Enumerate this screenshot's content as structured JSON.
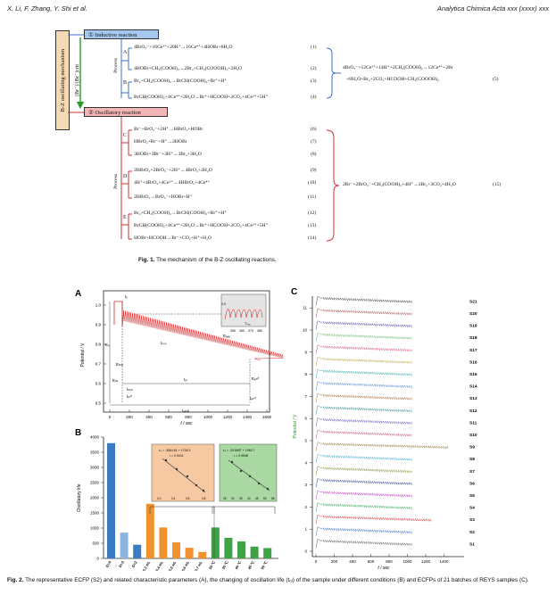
{
  "header": {
    "left": "X. Li, F. Zhang, Y. Shi et al.",
    "right": "Analytica Chimica Acta xxx (xxxx) xxx"
  },
  "figure1": {
    "vertical_title": "B-Z oscillating mechanism",
    "switch_label": "[Br⁻]/[Br⁻]crit",
    "stage1": "① Inductive reaction",
    "stage2": "② Oscillatory reaction",
    "process_word": "Process",
    "groups": [
      "A",
      "B",
      "C",
      "D",
      "E"
    ],
    "reactions": [
      {
        "eq": "4BrO₃⁻+16Ce³⁺+20H⁺→16Ce⁴⁺+4HOBr+8H₂O",
        "num": "(1)"
      },
      {
        "eq": "4HOBr+CH₂(COOH)₂→2Br₂+CH₂(COOOH)₂+2H₂O",
        "num": "(2)"
      },
      {
        "eq": "Br₂+CH₂(COOH)₂→BrCH(COOH)₂+Br⁺+H⁺",
        "num": "(3)"
      },
      {
        "eq": "BrCH(COOH)₂+4Ce⁴⁺+2H₂O→Br⁺+HCOOH+2CO₂+4Ce³⁺+5H⁺",
        "num": "(4)"
      },
      {
        "eq": "Br⁻+BrO₃⁻+2H⁺→HBrO₂+HOBr",
        "num": "(6)"
      },
      {
        "eq": "HBrO₂+Br⁻+H⁺→2HOBr",
        "num": "(7)"
      },
      {
        "eq": "3HOBr+3Br⁻+3H⁺→3Br₂+3H₂O",
        "num": "(8)"
      },
      {
        "eq": "2HBrO₂+2BrO₃⁻+2H⁺→4BrO₂+2H₂O",
        "num": "(9)"
      },
      {
        "eq": "4H⁺+4BrO₂+4Ce³⁺→4HBrO₂+4Ce⁴⁺",
        "num": "(10)"
      },
      {
        "eq": "2HBrO₂→BrO₃⁻+HOBr+H⁺",
        "num": "(11)"
      },
      {
        "eq": "Br₂+CH₂(COOH)₂→BrCH(COOH)₂+Br⁺+H⁺",
        "num": "(12)"
      },
      {
        "eq": "BrCH(COOH)₂+4Ce⁴⁺+2H₂O→Br⁺+HCOOH+2CO₂+4Ce³⁺+5H⁺",
        "num": "(13)"
      },
      {
        "eq": "HOBr+HCOOH→Br⁻+CO₂+H⁺+H₂O",
        "num": "(14)"
      }
    ],
    "overall1": {
      "line1": "4BrO₃⁻+12Ce³⁺+14H⁺+2CH₂(COOH)₂→12Ce⁴⁺+2Br",
      "line2": "+8H₂O+Br₂+2CO₂+HCOOH+CH₂(COOOH)₂",
      "num": "(5)"
    },
    "overall2": {
      "eq": "2Br⁻+2BrO₃⁻+CH₂(COOH)₂+4H⁺→2Br₂+3CO₂+4H₂O",
      "num": "(15)"
    },
    "caption_bold": "Fig. 1.",
    "caption_text": "The mechanism of the B-Z oscillating reactions."
  },
  "figure2": {
    "caption_bold": "Fig. 2.",
    "caption_text": "The representative ECFP (S2) and related characteristic parameters (A), the changing of oscillation life (tₒₗ) of the sample under different conditions (B) and ECFPs of 21 batches of REYS samples (C).",
    "panelA": {
      "letter": "A",
      "ylabel": "Potential / V",
      "xlabel": "t / sec",
      "xticks": [
        "0",
        "200",
        "400",
        "600",
        "800",
        "1000",
        "1200",
        "1400",
        "1600"
      ],
      "yticks": [
        "0.5",
        "0.6",
        "0.7",
        "0.8",
        "0.9",
        "1.0"
      ],
      "labels": [
        "Eₚ",
        "tₚ",
        "Eₘᵢₙ",
        "tₘᵢₙ",
        "tᵢₙᵈ",
        "Eᵢₙᵢ",
        "tₒₗ",
        "Eₑₙᵈ",
        "Eₐᵥₑ",
        "tₑₙᵈ",
        "tₐₘₚ",
        "tₒₛₚ"
      ],
      "inset_xticks": [
        "350",
        "360",
        "370",
        "380"
      ],
      "inset_ytick": "0.9",
      "inset_label": "Tₒₛₚ"
    },
    "panelB": {
      "letter": "B",
      "ylabel": "Oscillatory life",
      "yticks": [
        "0",
        "500",
        "1000",
        "1500",
        "2000",
        "2500",
        "3000",
        "3500",
        "4000"
      ],
      "categories": [
        "D=4",
        "D=3",
        "D=2",
        "0.3 mL",
        "0.4 mL",
        "0.5 mL",
        "0.6 mL",
        "0.7 mL",
        "30 ℃",
        "35 ℃",
        "40 ℃",
        "45 ℃",
        "50 ℃"
      ],
      "inset1": {
        "eq": "tₒₗ = -3064.61 + 1728.3",
        "r": "r = 0.9411",
        "xticks": [
          "0.2",
          "0.4",
          "0.6",
          "0.8"
        ]
      },
      "inset2": {
        "eq": "tₒₗ = -33.569T + 1962.7",
        "r": "r = 0.9548",
        "xticks": [
          "25",
          "30",
          "35",
          "40",
          "45",
          "50",
          "55"
        ]
      }
    },
    "panelC": {
      "letter": "C",
      "ylabel": "Potential / V",
      "xlabel": "t / sec",
      "xticks": [
        "0",
        "200",
        "400",
        "600",
        "800",
        "1000",
        "1200",
        "1400"
      ],
      "yticks": [
        "0",
        "1",
        "2",
        "3",
        "4",
        "5",
        "6",
        "7",
        "8",
        "9",
        "10",
        "11"
      ],
      "series_labels": [
        "S21",
        "S20",
        "S19",
        "S18",
        "S17",
        "S16",
        "S15",
        "S14",
        "S13",
        "S12",
        "S11",
        "S10",
        "S9",
        "S8",
        "S7",
        "S6",
        "S5",
        "S4",
        "S3",
        "S2",
        "S1"
      ],
      "colors": [
        "#4a4a4a",
        "#2060c8",
        "#d02020",
        "#20a040",
        "#c020c0",
        "#1a2a8a",
        "#6a8a20",
        "#2aa0c8",
        "#8a6a2a",
        "#c04060",
        "#6040c0",
        "#208080",
        "#a06020",
        "#4080d0",
        "#20a0a0",
        "#b0a030",
        "#d04080",
        "#60b060",
        "#4040a0",
        "#a04040",
        "#303030"
      ]
    }
  }
}
